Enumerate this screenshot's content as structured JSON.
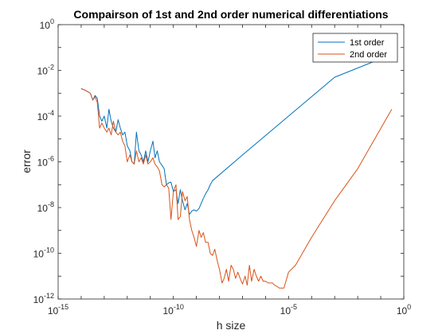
{
  "chart_data": {
    "type": "line",
    "title": "Compairson of 1st and 2nd order numerical differentiations",
    "xlabel": "h size",
    "ylabel": "error",
    "xscale": "log",
    "yscale": "log",
    "xlim": [
      1e-15,
      1
    ],
    "ylim": [
      1e-12,
      1
    ],
    "xticks": [
      {
        "base": "10",
        "exp": "-15",
        "value": 1e-15
      },
      {
        "base": "10",
        "exp": "-10",
        "value": 1e-10
      },
      {
        "base": "10",
        "exp": "-5",
        "value": 1e-05
      },
      {
        "base": "10",
        "exp": "0",
        "value": 1
      }
    ],
    "yticks": [
      {
        "base": "10",
        "exp": "-12",
        "value": 1e-12
      },
      {
        "base": "10",
        "exp": "-10",
        "value": 1e-10
      },
      {
        "base": "10",
        "exp": "-8",
        "value": 1e-08
      },
      {
        "base": "10",
        "exp": "-6",
        "value": 1e-06
      },
      {
        "base": "10",
        "exp": "-4",
        "value": 0.0001
      },
      {
        "base": "10",
        "exp": "-2",
        "value": 0.01
      },
      {
        "base": "10",
        "exp": "0",
        "value": 1
      }
    ],
    "grid": false,
    "legend_position": "top-right",
    "series": [
      {
        "name": "1st order",
        "color": "#0072BD",
        "x": [
          1e-14,
          1.6e-14,
          2.5e-14,
          3.2e-14,
          4e-14,
          5e-14,
          6.3e-14,
          7.9e-14,
          1e-13,
          1.3e-13,
          1.6e-13,
          2e-13,
          2.5e-13,
          3.2e-13,
          4e-13,
          5e-13,
          6.3e-13,
          7.9e-13,
          1e-12,
          1.3e-12,
          1.6e-12,
          2e-12,
          2.5e-12,
          3.2e-12,
          4e-12,
          5e-12,
          6.3e-12,
          7.9e-12,
          1e-11,
          1.3e-11,
          1.6e-11,
          2e-11,
          2.5e-11,
          3.2e-11,
          4e-11,
          5e-11,
          6.3e-11,
          7.9e-11,
          1e-10,
          1.3e-10,
          1.6e-10,
          2e-10,
          2.5e-10,
          3.2e-10,
          4e-10,
          5e-10,
          6.3e-10,
          7.9e-10,
          1e-09,
          1.3e-09,
          1.6e-09,
          2e-09,
          2.5e-09,
          3.2e-09,
          4e-09,
          5e-09,
          1e-07,
          1e-05,
          0.001,
          0.3
        ],
        "y": [
          0.0016,
          0.0013,
          0.001,
          0.0005,
          0.0008,
          0.0006,
          0.0001,
          6e-05,
          0.0001,
          3e-05,
          0.0002,
          6e-05,
          3e-05,
          2e-05,
          7e-05,
          3e-05,
          1.5e-05,
          2e-05,
          5e-06,
          3e-06,
          1e-06,
          8e-07,
          2e-05,
          3e-06,
          2e-06,
          1e-06,
          3e-06,
          1e-06,
          3e-06,
          8e-06,
          1.5e-06,
          3e-06,
          1e-06,
          7e-07,
          5e-07,
          1e-07,
          1.2e-07,
          1.3e-07,
          5e-08,
          6e-08,
          1.5e-08,
          6e-08,
          2e-08,
          8e-09,
          1.5e-08,
          5e-09,
          7e-09,
          8e-09,
          7e-09,
          9e-09,
          1.5e-08,
          2.5e-08,
          4e-08,
          6e-08,
          1e-07,
          1.5e-07,
          2e-06,
          0.0001,
          0.005,
          0.05
        ]
      },
      {
        "name": "2nd order",
        "color": "#D95319",
        "x": [
          1e-14,
          1.6e-14,
          2.5e-14,
          3.2e-14,
          4e-14,
          5e-14,
          6.3e-14,
          7.9e-14,
          1e-13,
          1.3e-13,
          1.6e-13,
          2e-13,
          2.5e-13,
          3.2e-13,
          4e-13,
          5e-13,
          6.3e-13,
          7.9e-13,
          1e-12,
          1.3e-12,
          1.6e-12,
          2e-12,
          2.5e-12,
          3.2e-12,
          4e-12,
          5e-12,
          6.3e-12,
          7.9e-12,
          1e-11,
          1.3e-11,
          1.6e-11,
          2e-11,
          2.5e-11,
          3.2e-11,
          4e-11,
          5e-11,
          6.3e-11,
          7.9e-11,
          1e-10,
          1.3e-10,
          1.6e-10,
          2e-10,
          2.5e-10,
          3.2e-10,
          4e-10,
          5e-10,
          6.3e-10,
          7.9e-10,
          1e-09,
          1.3e-09,
          1.6e-09,
          2e-09,
          2.5e-09,
          3.2e-09,
          4e-09,
          5e-09,
          6.3e-09,
          7.9e-09,
          1e-08,
          1.3e-08,
          1.6e-08,
          2e-08,
          2.5e-08,
          3.2e-08,
          4e-08,
          5e-08,
          6.3e-08,
          7.9e-08,
          1e-07,
          1.3e-07,
          1.6e-07,
          2e-07,
          2.5e-07,
          3.2e-07,
          4e-07,
          5e-07,
          6.3e-07,
          7.9e-07,
          1e-06,
          1.3e-06,
          1.6e-06,
          2e-06,
          2.5e-06,
          3.2e-06,
          4e-06,
          6.3e-06,
          1e-05,
          2e-05,
          0.0001,
          0.001,
          0.01,
          0.3
        ],
        "y": [
          0.0016,
          0.0013,
          0.001,
          0.0005,
          0.0007,
          0.0004,
          3e-05,
          5e-05,
          3e-05,
          2e-05,
          3e-05,
          1.5e-05,
          6e-05,
          2e-05,
          1.5e-05,
          2e-05,
          8e-06,
          5e-06,
          1e-06,
          2e-06,
          1e-06,
          8e-07,
          3e-06,
          1e-06,
          1.5e-06,
          8e-07,
          2e-06,
          8e-07,
          1e-06,
          1.5e-06,
          8e-07,
          6e-07,
          4e-07,
          1e-07,
          8e-08,
          1e-07,
          7e-08,
          3e-09,
          5e-08,
          1e-07,
          3e-09,
          4e-09,
          5e-08,
          2e-08,
          3e-08,
          3e-09,
          1e-09,
          5e-10,
          2e-10,
          1e-09,
          5e-10,
          8e-10,
          3e-10,
          3e-10,
          1e-10,
          8e-11,
          1.5e-10,
          5e-11,
          2e-11,
          5e-12,
          8e-12,
          2e-11,
          6e-12,
          3e-11,
          2e-11,
          8e-12,
          1.5e-11,
          8e-12,
          4.5e-12,
          1e-11,
          4e-12,
          3e-11,
          6e-12,
          2e-11,
          1e-11,
          6e-12,
          1e-11,
          6e-12,
          6e-12,
          5e-12,
          5e-12,
          5e-12,
          4e-12,
          3.5e-12,
          3e-12,
          3e-12,
          1.5e-11,
          3e-11,
          5e-10,
          2e-08,
          5e-07,
          0.0002
        ]
      }
    ]
  }
}
